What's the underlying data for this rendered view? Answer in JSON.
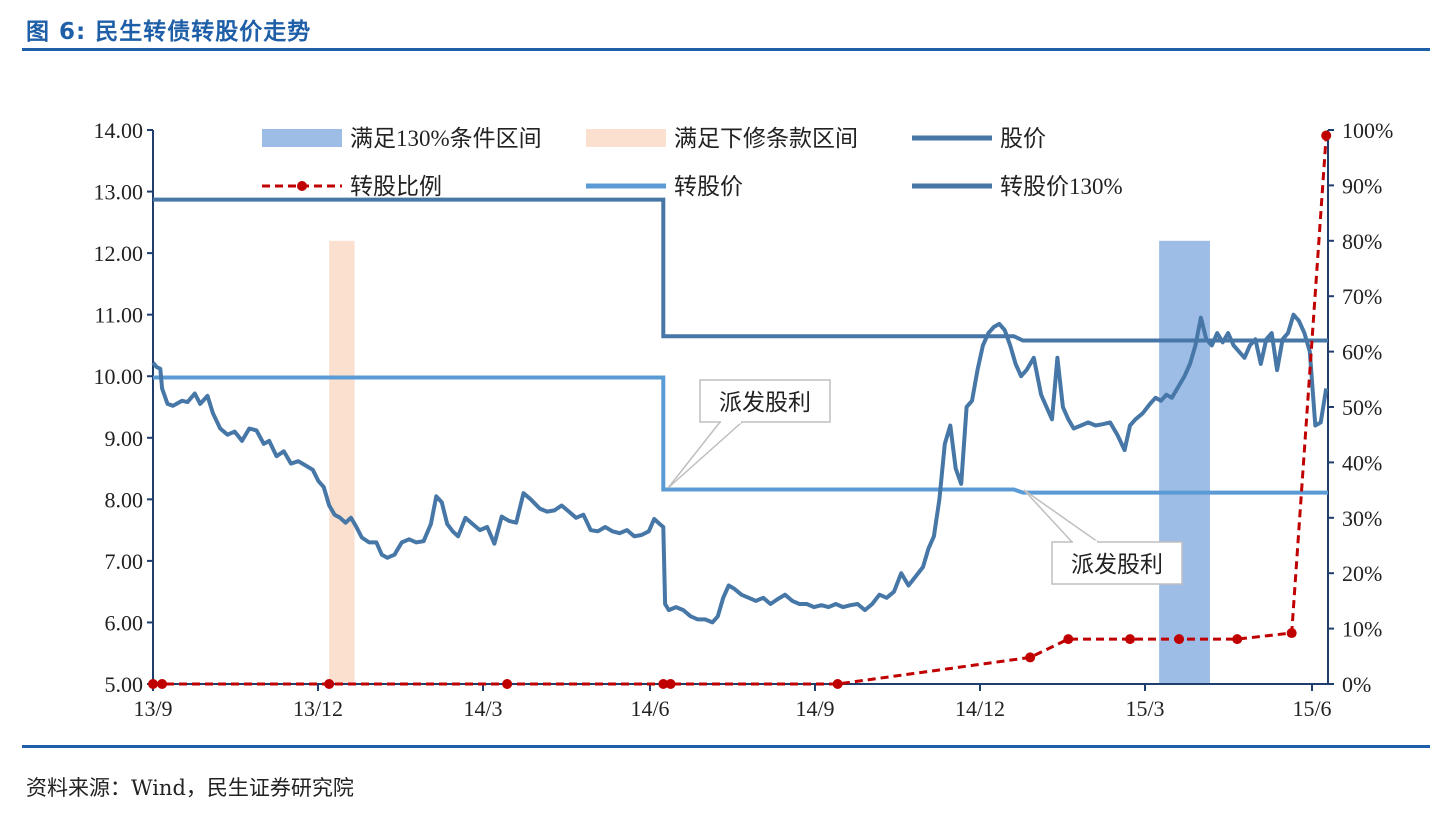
{
  "figure": {
    "title": "图 6:  民生转债转股价走势",
    "source": "资料来源：Wind，民生证券研究院"
  },
  "colors": {
    "stock": "#4677a7",
    "conv_price": "#5b9bd5",
    "ratio": "#c00000",
    "band_130": "#9ebde6",
    "band_revise": "#fbdfcf",
    "axis": "#1f3d6d"
  },
  "chart_data": {
    "type": "line",
    "x_ticks": [
      "13/9",
      "13/12",
      "14/3",
      "14/6",
      "14/9",
      "14/12",
      "15/3",
      "15/6"
    ],
    "x_domain": [
      "2013-09-01",
      "2015-06-10"
    ],
    "y_left": {
      "range": [
        5,
        14
      ],
      "ticks": [
        "5.00",
        "6.00",
        "7.00",
        "8.00",
        "9.00",
        "10.00",
        "11.00",
        "12.00",
        "13.00",
        "14.00"
      ]
    },
    "y_right": {
      "range": [
        0,
        100
      ],
      "ticks": [
        "0%",
        "10%",
        "20%",
        "30%",
        "40%",
        "50%",
        "60%",
        "70%",
        "80%",
        "90%",
        "100%"
      ]
    },
    "legend": {
      "band_130": "满足130%条件区间",
      "band_revise": "满足下修条款区间",
      "stock": "股价",
      "ratio": "转股比例",
      "conv_price": "转股价",
      "conv_price_130": "转股价130%"
    },
    "bands": [
      {
        "type": "band_revise",
        "x": [
          "2013-12-07",
          "2013-12-21"
        ]
      },
      {
        "type": "band_130",
        "x": [
          "2015-03-09",
          "2015-04-06"
        ]
      }
    ],
    "conv_price": [
      [
        "2013-09-01",
        9.98
      ],
      [
        "2014-06-09",
        9.98
      ],
      [
        "2014-06-09",
        8.16
      ],
      [
        "2014-12-19",
        8.16
      ],
      [
        "2014-12-24",
        8.11
      ],
      [
        "2015-06-10",
        8.11
      ]
    ],
    "conv_price_130": [
      [
        "2013-09-01",
        12.87
      ],
      [
        "2014-06-09",
        12.87
      ],
      [
        "2014-06-09",
        10.65
      ],
      [
        "2014-12-19",
        10.65
      ],
      [
        "2014-12-24",
        10.58
      ],
      [
        "2015-06-10",
        10.58
      ]
    ],
    "stock": [
      [
        "2013-09-01",
        10.22
      ],
      [
        "2013-09-03",
        10.15
      ],
      [
        "2013-09-05",
        10.12
      ],
      [
        "2013-09-06",
        9.8
      ],
      [
        "2013-09-09",
        9.55
      ],
      [
        "2013-09-12",
        9.52
      ],
      [
        "2013-09-17",
        9.6
      ],
      [
        "2013-09-20",
        9.58
      ],
      [
        "2013-09-24",
        9.72
      ],
      [
        "2013-09-27",
        9.55
      ],
      [
        "2013-10-01",
        9.68
      ],
      [
        "2013-10-04",
        9.4
      ],
      [
        "2013-10-08",
        9.15
      ],
      [
        "2013-10-12",
        9.05
      ],
      [
        "2013-10-16",
        9.1
      ],
      [
        "2013-10-20",
        8.95
      ],
      [
        "2013-10-24",
        9.15
      ],
      [
        "2013-10-28",
        9.12
      ],
      [
        "2013-11-01",
        8.9
      ],
      [
        "2013-11-04",
        8.95
      ],
      [
        "2013-11-08",
        8.7
      ],
      [
        "2013-11-12",
        8.78
      ],
      [
        "2013-11-16",
        8.58
      ],
      [
        "2013-11-20",
        8.62
      ],
      [
        "2013-11-24",
        8.55
      ],
      [
        "2013-11-28",
        8.48
      ],
      [
        "2013-12-01",
        8.3
      ],
      [
        "2013-12-04",
        8.2
      ],
      [
        "2013-12-07",
        7.9
      ],
      [
        "2013-12-10",
        7.75
      ],
      [
        "2013-12-13",
        7.7
      ],
      [
        "2013-12-16",
        7.62
      ],
      [
        "2013-12-19",
        7.7
      ],
      [
        "2013-12-22",
        7.55
      ],
      [
        "2013-12-25",
        7.38
      ],
      [
        "2013-12-29",
        7.3
      ],
      [
        "2014-01-02",
        7.3
      ],
      [
        "2014-01-05",
        7.1
      ],
      [
        "2014-01-08",
        7.05
      ],
      [
        "2014-01-12",
        7.1
      ],
      [
        "2014-01-16",
        7.3
      ],
      [
        "2014-01-20",
        7.35
      ],
      [
        "2014-01-24",
        7.3
      ],
      [
        "2014-01-28",
        7.32
      ],
      [
        "2014-02-01",
        7.6
      ],
      [
        "2014-02-04",
        8.05
      ],
      [
        "2014-02-07",
        7.95
      ],
      [
        "2014-02-10",
        7.6
      ],
      [
        "2014-02-13",
        7.48
      ],
      [
        "2014-02-16",
        7.4
      ],
      [
        "2014-02-20",
        7.7
      ],
      [
        "2014-02-24",
        7.6
      ],
      [
        "2014-02-28",
        7.5
      ],
      [
        "2014-03-04",
        7.55
      ],
      [
        "2014-03-08",
        7.28
      ],
      [
        "2014-03-12",
        7.72
      ],
      [
        "2014-03-16",
        7.65
      ],
      [
        "2014-03-20",
        7.62
      ],
      [
        "2014-03-24",
        8.1
      ],
      [
        "2014-03-28",
        8.0
      ],
      [
        "2014-04-02",
        7.85
      ],
      [
        "2014-04-06",
        7.8
      ],
      [
        "2014-04-10",
        7.82
      ],
      [
        "2014-04-14",
        7.9
      ],
      [
        "2014-04-18",
        7.8
      ],
      [
        "2014-04-22",
        7.7
      ],
      [
        "2014-04-26",
        7.75
      ],
      [
        "2014-04-30",
        7.5
      ],
      [
        "2014-05-04",
        7.48
      ],
      [
        "2014-05-08",
        7.55
      ],
      [
        "2014-05-12",
        7.48
      ],
      [
        "2014-05-16",
        7.45
      ],
      [
        "2014-05-20",
        7.5
      ],
      [
        "2014-05-24",
        7.4
      ],
      [
        "2014-05-28",
        7.42
      ],
      [
        "2014-06-01",
        7.48
      ],
      [
        "2014-06-04",
        7.68
      ],
      [
        "2014-06-07",
        7.6
      ],
      [
        "2014-06-09",
        7.55
      ],
      [
        "2014-06-10",
        6.3
      ],
      [
        "2014-06-12",
        6.2
      ],
      [
        "2014-06-16",
        6.25
      ],
      [
        "2014-06-20",
        6.2
      ],
      [
        "2014-06-24",
        6.1
      ],
      [
        "2014-06-28",
        6.05
      ],
      [
        "2014-07-02",
        6.05
      ],
      [
        "2014-07-06",
        6.0
      ],
      [
        "2014-07-09",
        6.1
      ],
      [
        "2014-07-12",
        6.4
      ],
      [
        "2014-07-15",
        6.6
      ],
      [
        "2014-07-18",
        6.55
      ],
      [
        "2014-07-22",
        6.45
      ],
      [
        "2014-07-26",
        6.4
      ],
      [
        "2014-07-30",
        6.35
      ],
      [
        "2014-08-03",
        6.4
      ],
      [
        "2014-08-07",
        6.3
      ],
      [
        "2014-08-11",
        6.38
      ],
      [
        "2014-08-15",
        6.45
      ],
      [
        "2014-08-19",
        6.35
      ],
      [
        "2014-08-23",
        6.3
      ],
      [
        "2014-08-27",
        6.3
      ],
      [
        "2014-08-31",
        6.25
      ],
      [
        "2014-09-04",
        6.28
      ],
      [
        "2014-09-08",
        6.25
      ],
      [
        "2014-09-12",
        6.3
      ],
      [
        "2014-09-16",
        6.25
      ],
      [
        "2014-09-20",
        6.28
      ],
      [
        "2014-09-24",
        6.3
      ],
      [
        "2014-09-28",
        6.2
      ],
      [
        "2014-10-02",
        6.3
      ],
      [
        "2014-10-06",
        6.45
      ],
      [
        "2014-10-10",
        6.4
      ],
      [
        "2014-10-14",
        6.5
      ],
      [
        "2014-10-18",
        6.8
      ],
      [
        "2014-10-22",
        6.6
      ],
      [
        "2014-10-26",
        6.75
      ],
      [
        "2014-10-30",
        6.9
      ],
      [
        "2014-11-02",
        7.2
      ],
      [
        "2014-11-05",
        7.4
      ],
      [
        "2014-11-08",
        8.0
      ],
      [
        "2014-11-11",
        8.9
      ],
      [
        "2014-11-14",
        9.2
      ],
      [
        "2014-11-17",
        8.5
      ],
      [
        "2014-11-20",
        8.25
      ],
      [
        "2014-11-23",
        9.5
      ],
      [
        "2014-11-26",
        9.6
      ],
      [
        "2014-11-29",
        10.1
      ],
      [
        "2014-12-02",
        10.5
      ],
      [
        "2014-12-05",
        10.7
      ],
      [
        "2014-12-08",
        10.8
      ],
      [
        "2014-12-11",
        10.85
      ],
      [
        "2014-12-14",
        10.75
      ],
      [
        "2014-12-17",
        10.5
      ],
      [
        "2014-12-20",
        10.2
      ],
      [
        "2014-12-23",
        10.0
      ],
      [
        "2014-12-26",
        10.1
      ],
      [
        "2014-12-30",
        10.3
      ],
      [
        "2015-01-03",
        9.7
      ],
      [
        "2015-01-06",
        9.5
      ],
      [
        "2015-01-09",
        9.3
      ],
      [
        "2015-01-12",
        10.3
      ],
      [
        "2015-01-15",
        9.5
      ],
      [
        "2015-01-18",
        9.3
      ],
      [
        "2015-01-21",
        9.15
      ],
      [
        "2015-01-25",
        9.2
      ],
      [
        "2015-01-29",
        9.25
      ],
      [
        "2015-02-02",
        9.2
      ],
      [
        "2015-02-06",
        9.22
      ],
      [
        "2015-02-10",
        9.25
      ],
      [
        "2015-02-14",
        9.05
      ],
      [
        "2015-02-18",
        8.8
      ],
      [
        "2015-02-21",
        9.2
      ],
      [
        "2015-02-24",
        9.3
      ],
      [
        "2015-02-28",
        9.4
      ],
      [
        "2015-03-04",
        9.55
      ],
      [
        "2015-03-07",
        9.65
      ],
      [
        "2015-03-10",
        9.6
      ],
      [
        "2015-03-13",
        9.7
      ],
      [
        "2015-03-16",
        9.65
      ],
      [
        "2015-03-19",
        9.8
      ],
      [
        "2015-03-23",
        10.0
      ],
      [
        "2015-03-26",
        10.2
      ],
      [
        "2015-03-29",
        10.5
      ],
      [
        "2015-04-01",
        10.95
      ],
      [
        "2015-04-04",
        10.6
      ],
      [
        "2015-04-07",
        10.5
      ],
      [
        "2015-04-10",
        10.7
      ],
      [
        "2015-04-13",
        10.55
      ],
      [
        "2015-04-16",
        10.7
      ],
      [
        "2015-04-19",
        10.5
      ],
      [
        "2015-04-22",
        10.4
      ],
      [
        "2015-04-25",
        10.3
      ],
      [
        "2015-04-28",
        10.5
      ],
      [
        "2015-05-01",
        10.6
      ],
      [
        "2015-05-04",
        10.2
      ],
      [
        "2015-05-07",
        10.6
      ],
      [
        "2015-05-10",
        10.7
      ],
      [
        "2015-05-13",
        10.1
      ],
      [
        "2015-05-16",
        10.6
      ],
      [
        "2015-05-19",
        10.7
      ],
      [
        "2015-05-22",
        11.0
      ],
      [
        "2015-05-25",
        10.9
      ],
      [
        "2015-05-28",
        10.7
      ],
      [
        "2015-05-31",
        10.4
      ],
      [
        "2015-06-03",
        9.2
      ],
      [
        "2015-06-06",
        9.25
      ],
      [
        "2015-06-09",
        9.8
      ]
    ],
    "ratio": [
      [
        "2013-09-01",
        0
      ],
      [
        "2013-09-06",
        0
      ],
      [
        "2013-12-07",
        0
      ],
      [
        "2014-03-15",
        0
      ],
      [
        "2014-06-09",
        0
      ],
      [
        "2014-06-13",
        0
      ],
      [
        "2014-09-13",
        0
      ],
      [
        "2014-12-28",
        4.8
      ],
      [
        "2015-01-18",
        8.1
      ],
      [
        "2015-02-21",
        8.1
      ],
      [
        "2015-03-20",
        8.1
      ],
      [
        "2015-04-21",
        8.1
      ],
      [
        "2015-05-21",
        9.2
      ],
      [
        "2015-06-09",
        99
      ]
    ],
    "annotations": [
      {
        "label": "派发股利",
        "at": [
          "2014-06-10",
          8.16
        ]
      },
      {
        "label": "派发股利",
        "at": [
          "2014-12-23",
          8.11
        ]
      }
    ]
  }
}
